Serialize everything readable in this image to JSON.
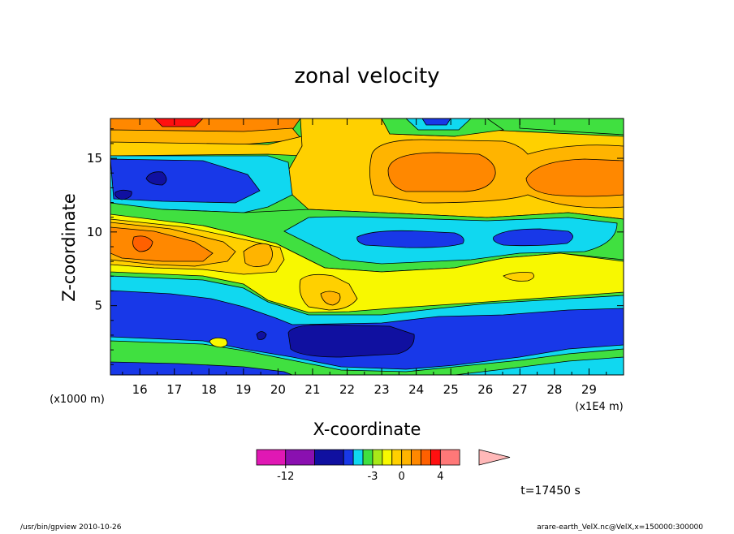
{
  "chart_data": {
    "type": "heatmap",
    "title": "zonal velocity",
    "xlabel": "X-coordinate",
    "ylabel": "Z-coordinate",
    "x_unit": "(x1E4 m)",
    "y_unit": "(x1000 m)",
    "xlim": [
      15.15,
      30.0
    ],
    "ylim": [
      0.3,
      17.7
    ],
    "x_ticks": [
      "16",
      "17",
      "18",
      "19",
      "20",
      "21",
      "22",
      "23",
      "24",
      "25",
      "26",
      "27",
      "28",
      "29"
    ],
    "y_ticks": [
      "5",
      "10",
      "15"
    ],
    "colorbar": {
      "levels": [
        -15,
        -12,
        -9,
        -6,
        -5,
        -4,
        -3,
        -2,
        -1,
        0,
        1,
        2,
        3,
        4,
        6,
        8
      ],
      "labels": [
        "-12",
        "-3",
        "0",
        "4"
      ],
      "colors": [
        "#e018b4",
        "#8a10b0",
        "#1010a0",
        "#1838e8",
        "#10d8f0",
        "#40e040",
        "#a8e818",
        "#f8f800",
        "#ffd000",
        "#ffb400",
        "#ff8800",
        "#ff6000",
        "#ff1010",
        "#ff7878",
        "#ffb8b8"
      ]
    },
    "time_label": "t=17450 s"
  },
  "footer": {
    "left": "/usr/bin/gpview  2010-10-26",
    "right": "arare-earth_VelX.nc@VelX,x=150000:300000"
  }
}
